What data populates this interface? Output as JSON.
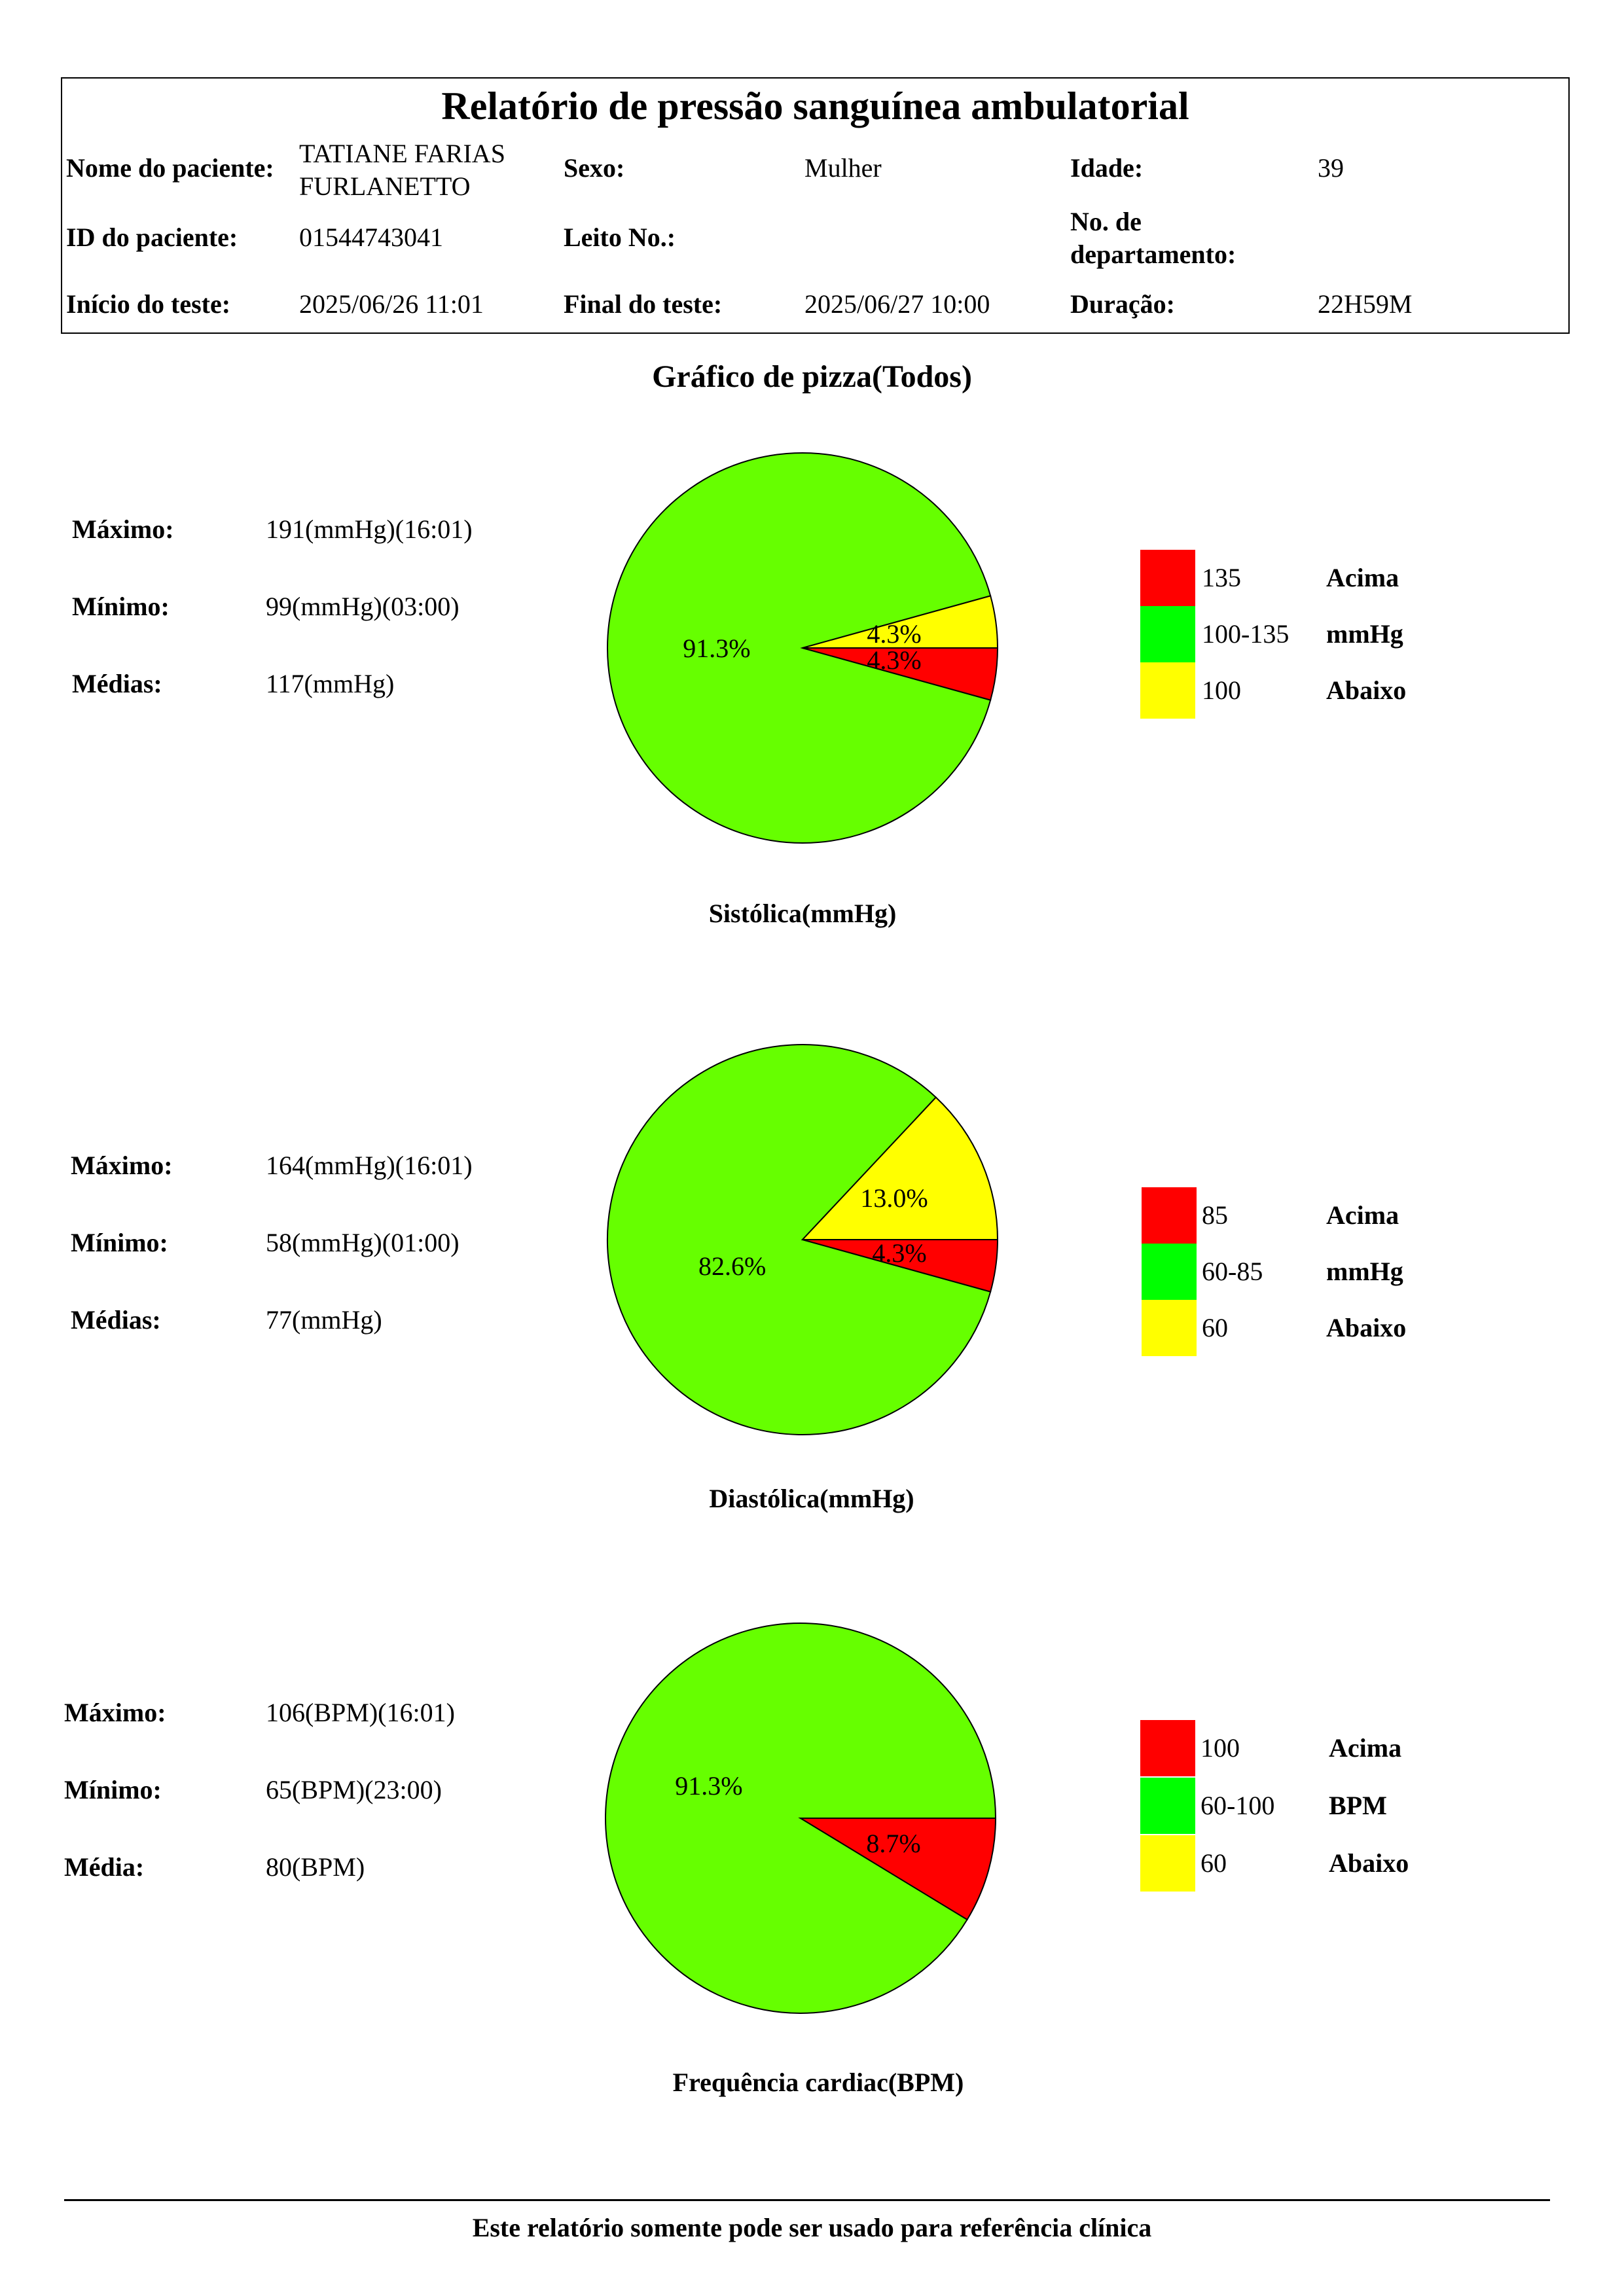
{
  "report": {
    "title": "Relatório de pressão sanguínea ambulatorial",
    "patient_name_label": "Nome do paciente:",
    "patient_name": "TATIANE FARIAS FURLANETTO",
    "sex_label": "Sexo:",
    "sex": "Mulher",
    "age_label": "Idade:",
    "age": "39",
    "patient_id_label": "ID do paciente:",
    "patient_id": "01544743041",
    "bed_label": "Leito No.:",
    "bed": "",
    "department_label": "No. de departamento:",
    "department": "",
    "start_label": "Início do teste:",
    "start": "2025/06/26 11:01",
    "end_label": "Final do teste:",
    "end": "2025/06/27 10:00",
    "duration_label": "Duração:",
    "duration": "22H59M"
  },
  "section_title": "Gráfico de pizza(Todos)",
  "colors": {
    "red": "#ff0000",
    "green": "#66ff00",
    "legend_green": "#00ff00",
    "yellow": "#ffff00"
  },
  "chart_data": [
    {
      "type": "pie",
      "title": "Sistólica(mmHg)",
      "slices": [
        {
          "label": "91.3%",
          "value": 91.3,
          "color": "#66ff00"
        },
        {
          "label": "4.3%",
          "value": 4.3,
          "color": "#ffff00"
        },
        {
          "label": "4.3%",
          "value": 4.3,
          "color": "#ff0000"
        }
      ],
      "stats": [
        {
          "label": "Máximo:",
          "value": "191(mmHg)(16:01)"
        },
        {
          "label": "Mínimo:",
          "value": "99(mmHg)(03:00)"
        },
        {
          "label": "Médias:",
          "value": "117(mmHg)"
        }
      ],
      "legend": [
        {
          "range": "135",
          "desc": "Acima",
          "color": "#ff0000"
        },
        {
          "range": "100-135",
          "desc": "mmHg",
          "color": "#00ff00"
        },
        {
          "range": "100",
          "desc": "Abaixo",
          "color": "#ffff00"
        }
      ]
    },
    {
      "type": "pie",
      "title": "Diastólica(mmHg)",
      "slices": [
        {
          "label": "82.6%",
          "value": 82.6,
          "color": "#66ff00"
        },
        {
          "label": "13.0%",
          "value": 13.0,
          "color": "#ffff00"
        },
        {
          "label": "4.3%",
          "value": 4.3,
          "color": "#ff0000"
        }
      ],
      "stats": [
        {
          "label": "Máximo:",
          "value": "164(mmHg)(16:01)"
        },
        {
          "label": "Mínimo:",
          "value": "58(mmHg)(01:00)"
        },
        {
          "label": "Médias:",
          "value": "77(mmHg)"
        }
      ],
      "legend": [
        {
          "range": "85",
          "desc": "Acima",
          "color": "#ff0000"
        },
        {
          "range": "60-85",
          "desc": "mmHg",
          "color": "#00ff00"
        },
        {
          "range": "60",
          "desc": "Abaixo",
          "color": "#ffff00"
        }
      ]
    },
    {
      "type": "pie",
      "title": "Frequência cardiac(BPM)",
      "slices": [
        {
          "label": "91.3%",
          "value": 91.3,
          "color": "#66ff00"
        },
        {
          "label": "8.7%",
          "value": 8.7,
          "color": "#ff0000"
        }
      ],
      "stats": [
        {
          "label": "Máximo:",
          "value": "106(BPM)(16:01)"
        },
        {
          "label": "Mínimo:",
          "value": "65(BPM)(23:00)"
        },
        {
          "label": "Média:",
          "value": "80(BPM)"
        }
      ],
      "legend": [
        {
          "range": "100",
          "desc": "Acima",
          "color": "#ff0000"
        },
        {
          "range": "60-100",
          "desc": "BPM",
          "color": "#00ff00"
        },
        {
          "range": "60",
          "desc": "Abaixo",
          "color": "#ffff00"
        }
      ]
    }
  ],
  "footer": "Este relatório somente pode ser usado para referência clínica"
}
